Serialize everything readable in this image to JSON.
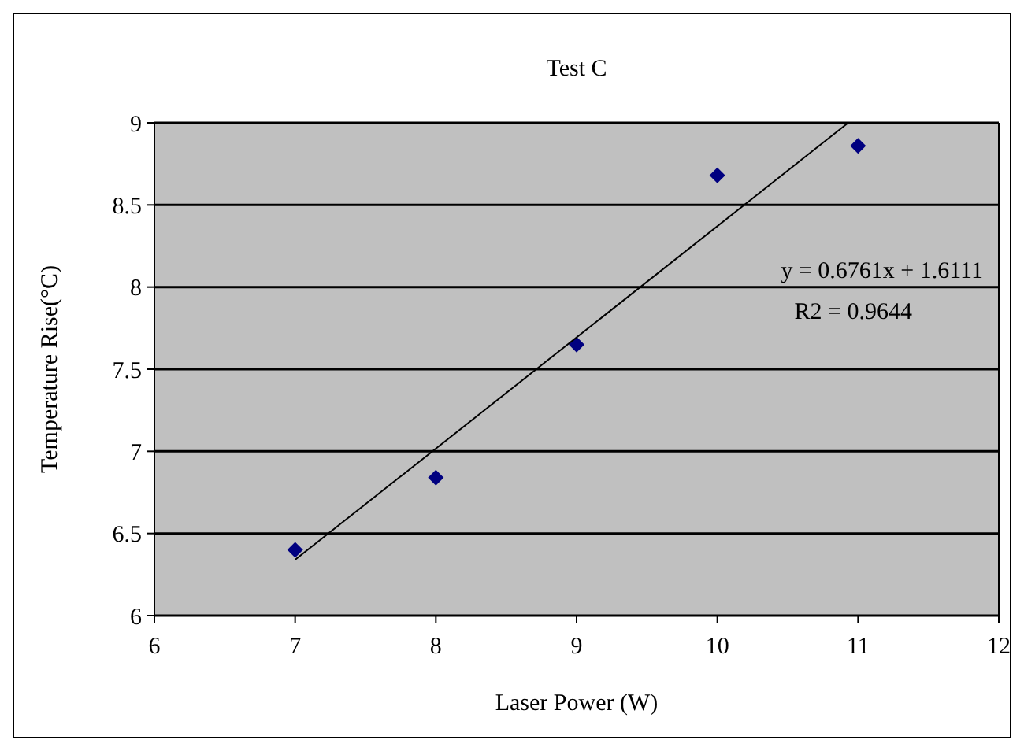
{
  "chart_data": {
    "type": "scatter",
    "title": "Test C",
    "xlabel": "Laser Power (W)",
    "ylabel": "Temperature Rise(°C)",
    "x": [
      7,
      8,
      9,
      10,
      11
    ],
    "series": [
      {
        "color": "#000080",
        "values": [
          6.4,
          6.84,
          7.65,
          8.68,
          8.86
        ],
        "marker": "diamond"
      },
      {
        "type": "line",
        "color": "#000000",
        "x": [
          7,
          10.93
        ],
        "values": [
          6.34,
          9.0
        ],
        "marker": "none"
      }
    ],
    "xlim": [
      6,
      12
    ],
    "xticks": [
      6,
      7,
      8,
      9,
      10,
      11,
      12
    ],
    "ylim": [
      6,
      9
    ],
    "yticks": [
      6,
      6.5,
      7,
      7.5,
      8,
      8.5,
      9
    ],
    "grid": "y",
    "annotations": [
      "y = 0.6761x + 1.6111",
      "R2 = 0.9644"
    ]
  }
}
